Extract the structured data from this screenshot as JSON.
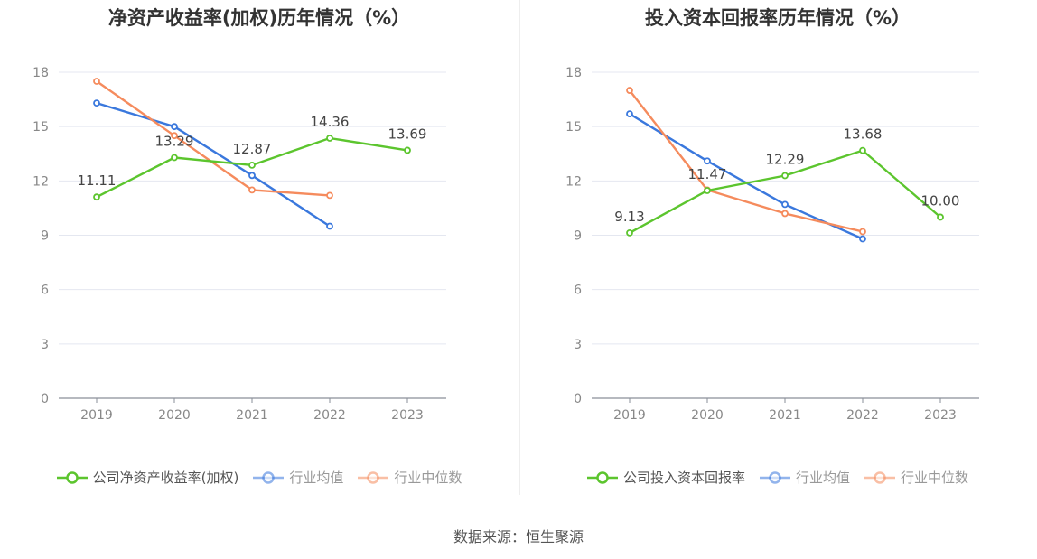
{
  "footer": {
    "source": "数据来源：恒生聚源"
  },
  "chart_data": [
    {
      "type": "line",
      "title": "净资产收益率(加权)历年情况（%）",
      "categories": [
        "2019",
        "2020",
        "2021",
        "2022",
        "2023"
      ],
      "ylim": [
        0,
        18
      ],
      "yticks": [
        "0",
        "3",
        "6",
        "9",
        "12",
        "15",
        "18"
      ],
      "grid": true,
      "legend_position": "bottom",
      "series": [
        {
          "name": "公司净资产收益率(加权)",
          "color": "#5cc52e",
          "active": true,
          "values": [
            11.11,
            13.29,
            12.87,
            14.36,
            13.69
          ],
          "labels": [
            "11.11",
            "13.29",
            "12.87",
            "14.36",
            "13.69"
          ]
        },
        {
          "name": "行业均值",
          "color": "#3a78dd",
          "active": false,
          "values": [
            16.3,
            15.0,
            12.3,
            9.5,
            null
          ]
        },
        {
          "name": "行业中位数",
          "color": "#f58b5d",
          "active": false,
          "values": [
            17.5,
            14.5,
            11.5,
            11.2,
            null
          ]
        }
      ]
    },
    {
      "type": "line",
      "title": "投入资本回报率历年情况（%）",
      "categories": [
        "2019",
        "2020",
        "2021",
        "2022",
        "2023"
      ],
      "ylim": [
        0,
        18
      ],
      "yticks": [
        "0",
        "3",
        "6",
        "9",
        "12",
        "15",
        "18"
      ],
      "grid": true,
      "legend_position": "bottom",
      "series": [
        {
          "name": "公司投入资本回报率",
          "color": "#5cc52e",
          "active": true,
          "values": [
            9.13,
            11.47,
            12.29,
            13.68,
            10.0
          ],
          "labels": [
            "9.13",
            "11.47",
            "12.29",
            "13.68",
            "10.00"
          ]
        },
        {
          "name": "行业均值",
          "color": "#3a78dd",
          "active": false,
          "values": [
            15.7,
            13.1,
            10.7,
            8.8,
            null
          ]
        },
        {
          "name": "行业中位数",
          "color": "#f58b5d",
          "active": false,
          "values": [
            17.0,
            11.5,
            10.2,
            9.2,
            null
          ]
        }
      ]
    }
  ]
}
